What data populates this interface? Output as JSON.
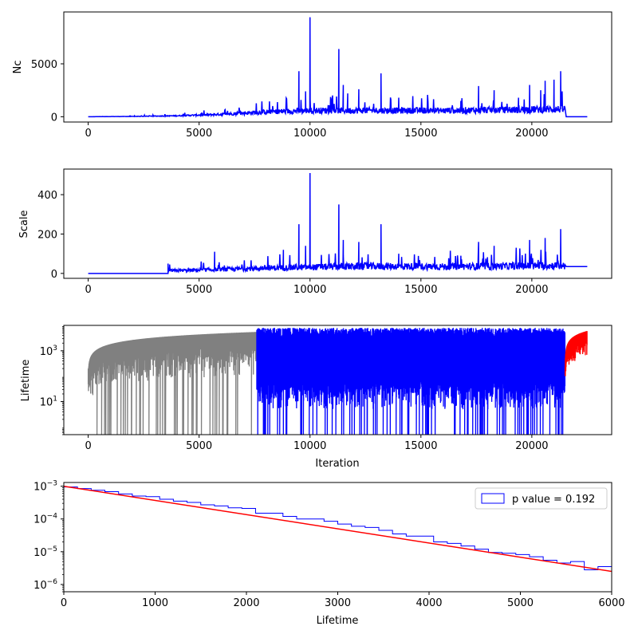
{
  "chart_data": [
    {
      "type": "line",
      "ylabel": "Nc",
      "xlabel": "",
      "xlim": [
        -1100,
        23600
      ],
      "ylim": [
        -500,
        9900
      ],
      "x_ticks": [
        0,
        5000,
        10000,
        15000,
        20000
      ],
      "x_tick_labels": [
        "0",
        "5000",
        "10000",
        "15000",
        "20000"
      ],
      "y_ticks": [
        0,
        5000
      ],
      "y_tick_labels": [
        "0",
        "5000"
      ],
      "series": [
        {
          "color": "#0000ff",
          "baseline_points": [
            [
              0,
              0
            ],
            [
              2000,
              30
            ],
            [
              4000,
              100
            ],
            [
              6000,
              250
            ],
            [
              8000,
              500
            ],
            [
              10000,
              650
            ],
            [
              12000,
              650
            ],
            [
              14000,
              650
            ],
            [
              16000,
              650
            ],
            [
              18000,
              700
            ],
            [
              20000,
              750
            ],
            [
              21500,
              800
            ]
          ],
          "peaks": [
            [
              9500,
              4300
            ],
            [
              9800,
              2400
            ],
            [
              10000,
              9400
            ],
            [
              11300,
              6400
            ],
            [
              11500,
              3000
            ],
            [
              11700,
              2200
            ],
            [
              12200,
              2600
            ],
            [
              13200,
              4100
            ],
            [
              14000,
              1800
            ],
            [
              16800,
              1500
            ],
            [
              17600,
              2900
            ],
            [
              18300,
              2500
            ],
            [
              19400,
              1800
            ],
            [
              19900,
              3000
            ],
            [
              20400,
              2500
            ],
            [
              20600,
              3400
            ],
            [
              21000,
              3500
            ],
            [
              21300,
              4300
            ]
          ],
          "tail": [
            [
              21550,
              0
            ],
            [
              22500,
              0
            ]
          ]
        }
      ]
    },
    {
      "type": "line",
      "ylabel": "Scale",
      "xlabel": "",
      "xlim": [
        -1100,
        23600
      ],
      "ylim": [
        -25,
        530
      ],
      "x_ticks": [
        0,
        5000,
        10000,
        15000,
        20000
      ],
      "x_tick_labels": [
        "0",
        "5000",
        "10000",
        "15000",
        "20000"
      ],
      "y_ticks": [
        0,
        200,
        400
      ],
      "y_tick_labels": [
        "0",
        "200",
        "400"
      ],
      "series": [
        {
          "color": "#0000ff",
          "flat_until": 3600,
          "baseline_points": [
            [
              3600,
              15
            ],
            [
              6000,
              22
            ],
            [
              8000,
              30
            ],
            [
              10000,
              35
            ],
            [
              12000,
              40
            ],
            [
              14000,
              40
            ],
            [
              16000,
              38
            ],
            [
              18000,
              40
            ],
            [
              20000,
              42
            ],
            [
              21500,
              45
            ]
          ],
          "peaks": [
            [
              3600,
              50
            ],
            [
              5700,
              110
            ],
            [
              8800,
              120
            ],
            [
              9500,
              250
            ],
            [
              9800,
              140
            ],
            [
              10000,
              510
            ],
            [
              11300,
              350
            ],
            [
              11500,
              170
            ],
            [
              12200,
              160
            ],
            [
              13200,
              250
            ],
            [
              14000,
              100
            ],
            [
              16800,
              90
            ],
            [
              17600,
              160
            ],
            [
              18300,
              140
            ],
            [
              19900,
              170
            ],
            [
              20600,
              180
            ],
            [
              21300,
              225
            ]
          ],
          "tail": [
            [
              21550,
              35
            ],
            [
              22500,
              35
            ]
          ]
        }
      ]
    },
    {
      "type": "line",
      "ylabel": "Lifetime",
      "xlabel": "Iteration",
      "y_scale": "log",
      "xlim": [
        -1100,
        23600
      ],
      "ylim": [
        0.5,
        10000
      ],
      "x_ticks": [
        0,
        5000,
        10000,
        15000,
        20000
      ],
      "x_tick_labels": [
        "0",
        "5000",
        "10000",
        "15000",
        "20000"
      ],
      "y_ticks": [
        10,
        1000
      ],
      "y_tick_bases": [
        "10",
        "10"
      ],
      "y_tick_exponents": [
        "1",
        "3"
      ],
      "series": [
        {
          "color": "#808080",
          "x_range": [
            0,
            7600
          ],
          "shape": "growing-envelope",
          "y_max": 5500
        },
        {
          "color": "#0000ff",
          "x_range": [
            7600,
            21500
          ],
          "shape": "band",
          "y_range": [
            50,
            8000
          ]
        },
        {
          "color": "#ff0000",
          "x_range": [
            21500,
            22500
          ],
          "shape": "growing-envelope",
          "y_max": 6000
        }
      ]
    },
    {
      "type": "histogram",
      "ylabel": "",
      "xlabel": "Lifetime",
      "y_scale": "log",
      "xlim": [
        0,
        6000
      ],
      "ylim": [
        6e-07,
        0.0013
      ],
      "x_ticks": [
        0,
        1000,
        2000,
        3000,
        4000,
        5000,
        6000
      ],
      "x_tick_labels": [
        "0",
        "1000",
        "2000",
        "3000",
        "4000",
        "5000",
        "6000"
      ],
      "y_ticks": [
        1e-06,
        1e-05,
        0.0001,
        0.001
      ],
      "y_tick_bases": [
        "10",
        "10",
        "10",
        "10"
      ],
      "y_tick_exponents": [
        "−6",
        "−5",
        "−4",
        "−3"
      ],
      "legend": {
        "label": "p value = 0.192",
        "placement": "top-right"
      },
      "series": [
        {
          "type": "step-histogram",
          "color": "#0000ff",
          "bin_width": 150,
          "values": [
            0.00095,
            0.00085,
            0.00075,
            0.00068,
            0.00058,
            0.0005,
            0.00048,
            0.0004,
            0.00035,
            0.00032,
            0.00027,
            0.00025,
            0.00022,
            0.00021,
            0.00015,
            0.00015,
            0.00012,
            0.0001,
            0.0001,
            8.5e-05,
            7e-05,
            6e-05,
            5.5e-05,
            4.5e-05,
            3.5e-05,
            3e-05,
            3e-05,
            2e-05,
            1.8e-05,
            1.5e-05,
            1.2e-05,
            9.5e-06,
            9e-06,
            8.2e-06,
            7e-06,
            5.5e-06,
            4.5e-06,
            5e-06,
            2.8e-06,
            3.5e-06
          ]
        },
        {
          "type": "fit-line",
          "color": "#ff0000",
          "points": [
            [
              0,
              0.001
            ],
            [
              6000,
              2.5e-06
            ]
          ]
        }
      ]
    }
  ]
}
